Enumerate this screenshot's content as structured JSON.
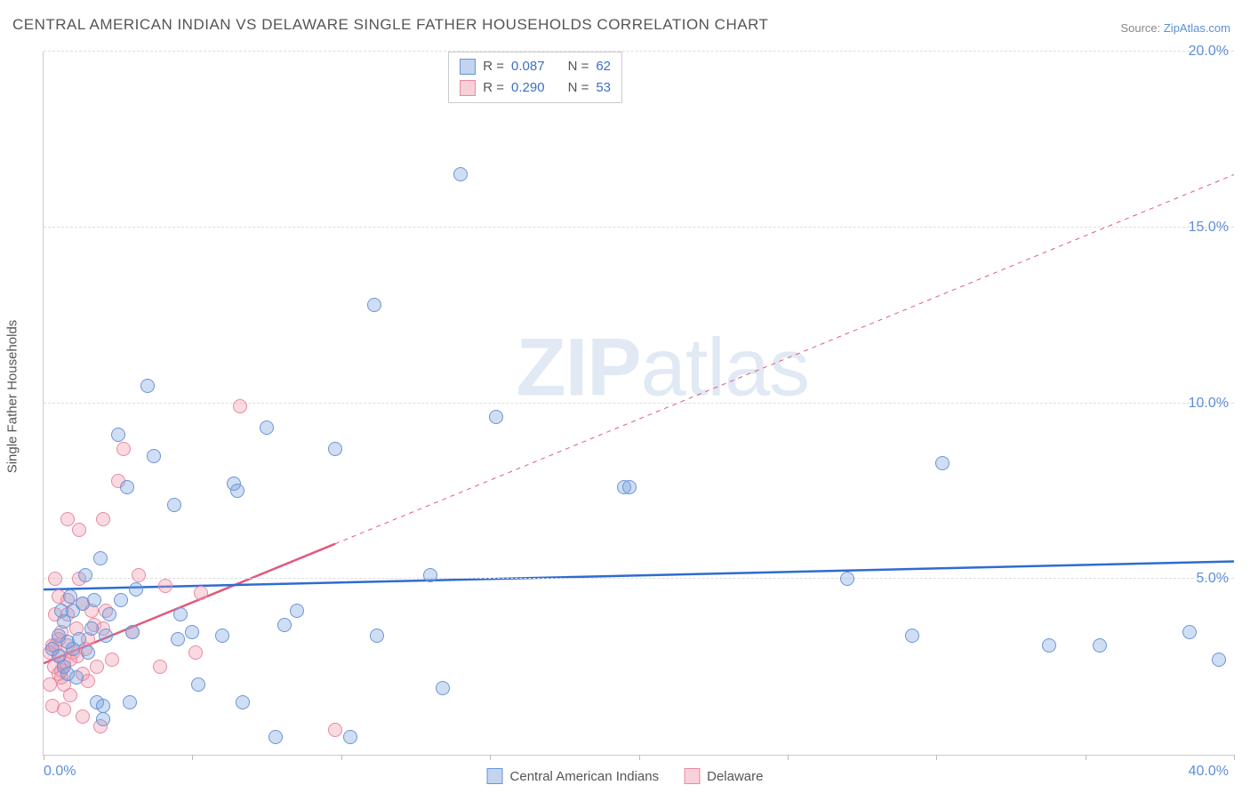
{
  "title": "CENTRAL AMERICAN INDIAN VS DELAWARE SINGLE FATHER HOUSEHOLDS CORRELATION CHART",
  "source_prefix": "Source: ",
  "source_name": "ZipAtlas.com",
  "ylabel": "Single Father Households",
  "watermark_a": "ZIP",
  "watermark_b": "atlas",
  "chart": {
    "type": "scatter",
    "xlim": [
      0,
      40
    ],
    "ylim": [
      0,
      20
    ],
    "xtick_positions": [
      0,
      5,
      10,
      15,
      20,
      25,
      30,
      35,
      40
    ],
    "xtick_labels": [
      "0.0%",
      "",
      "",
      "",
      "",
      "",
      "",
      "",
      "40.0%"
    ],
    "ytick_positions": [
      5,
      10,
      15,
      20
    ],
    "ytick_labels": [
      "5.0%",
      "10.0%",
      "15.0%",
      "20.0%"
    ],
    "background_color": "#ffffff",
    "grid_color": "#dddddd",
    "axis_color": "#cccccc",
    "label_color": "#5b8fd6",
    "title_color": "#555555",
    "title_fontsize": 17,
    "label_fontsize": 16,
    "marker_size": 16,
    "colors": {
      "blue_fill": "rgba(120,160,220,0.35)",
      "blue_stroke": "#6a95d8",
      "pink_fill": "rgba(240,150,170,0.35)",
      "pink_stroke": "#e68aa3",
      "blue_line": "#2e6cd1",
      "pink_line": "#e05a7d"
    },
    "legend_top": [
      {
        "swatch": "blue",
        "r_label": "R =",
        "r_value": "0.087",
        "n_label": "N =",
        "n_value": "62"
      },
      {
        "swatch": "pink",
        "r_label": "R =",
        "r_value": "0.290",
        "n_label": "N =",
        "n_value": "53"
      }
    ],
    "legend_bottom": [
      {
        "swatch": "blue",
        "label": "Central American Indians"
      },
      {
        "swatch": "pink",
        "label": "Delaware"
      }
    ],
    "trend_lines": {
      "blue_solid": {
        "x1": 0,
        "y1": 4.7,
        "x2": 40,
        "y2": 5.5,
        "width": 2.5,
        "dash": false
      },
      "pink_solid": {
        "x1": 0,
        "y1": 2.6,
        "x2": 9.8,
        "y2": 6.0,
        "width": 2.5,
        "dash": false
      },
      "pink_dashed": {
        "x1": 9.8,
        "y1": 6.0,
        "x2": 40,
        "y2": 16.5,
        "width": 1.0,
        "dash": true
      }
    },
    "series": {
      "blue": [
        [
          0.3,
          3.0
        ],
        [
          0.5,
          2.8
        ],
        [
          0.5,
          3.4
        ],
        [
          0.6,
          4.1
        ],
        [
          0.7,
          2.5
        ],
        [
          0.7,
          3.8
        ],
        [
          0.8,
          2.3
        ],
        [
          0.8,
          3.2
        ],
        [
          0.9,
          4.5
        ],
        [
          1.0,
          3.0
        ],
        [
          1.0,
          4.1
        ],
        [
          1.1,
          2.2
        ],
        [
          1.2,
          3.3
        ],
        [
          1.3,
          4.3
        ],
        [
          1.4,
          5.1
        ],
        [
          1.5,
          2.9
        ],
        [
          1.6,
          3.6
        ],
        [
          1.7,
          4.4
        ],
        [
          1.8,
          1.5
        ],
        [
          1.9,
          5.6
        ],
        [
          2.0,
          1.4
        ],
        [
          2.0,
          1.0
        ],
        [
          2.1,
          3.4
        ],
        [
          2.2,
          4.0
        ],
        [
          2.5,
          9.1
        ],
        [
          2.6,
          4.4
        ],
        [
          2.8,
          7.6
        ],
        [
          2.9,
          1.5
        ],
        [
          3.0,
          3.5
        ],
        [
          3.1,
          4.7
        ],
        [
          3.5,
          10.5
        ],
        [
          3.7,
          8.5
        ],
        [
          4.4,
          7.1
        ],
        [
          4.5,
          3.3
        ],
        [
          4.6,
          4.0
        ],
        [
          5.0,
          3.5
        ],
        [
          5.2,
          2.0
        ],
        [
          6.0,
          3.4
        ],
        [
          6.4,
          7.7
        ],
        [
          6.5,
          7.5
        ],
        [
          6.7,
          1.5
        ],
        [
          7.5,
          9.3
        ],
        [
          7.8,
          0.5
        ],
        [
          8.1,
          3.7
        ],
        [
          8.5,
          4.1
        ],
        [
          9.8,
          8.7
        ],
        [
          10.3,
          0.5
        ],
        [
          11.1,
          12.8
        ],
        [
          11.2,
          3.4
        ],
        [
          13.0,
          5.1
        ],
        [
          13.4,
          1.9
        ],
        [
          14.0,
          16.5
        ],
        [
          15.2,
          9.6
        ],
        [
          19.5,
          7.6
        ],
        [
          19.7,
          7.6
        ],
        [
          27.0,
          5.0
        ],
        [
          29.2,
          3.4
        ],
        [
          30.2,
          8.3
        ],
        [
          33.8,
          3.1
        ],
        [
          35.5,
          3.1
        ],
        [
          38.5,
          3.5
        ],
        [
          39.5,
          2.7
        ]
      ],
      "pink": [
        [
          0.2,
          2.0
        ],
        [
          0.2,
          2.9
        ],
        [
          0.3,
          1.4
        ],
        [
          0.3,
          3.1
        ],
        [
          0.35,
          2.5
        ],
        [
          0.4,
          3.1
        ],
        [
          0.4,
          4.0
        ],
        [
          0.4,
          5.0
        ],
        [
          0.5,
          2.3
        ],
        [
          0.5,
          3.3
        ],
        [
          0.5,
          4.5
        ],
        [
          0.55,
          2.8
        ],
        [
          0.6,
          2.2
        ],
        [
          0.6,
          2.4
        ],
        [
          0.6,
          3.5
        ],
        [
          0.7,
          1.3
        ],
        [
          0.7,
          2.0
        ],
        [
          0.7,
          2.6
        ],
        [
          0.8,
          3.1
        ],
        [
          0.8,
          4.0
        ],
        [
          0.8,
          4.4
        ],
        [
          0.8,
          6.7
        ],
        [
          0.9,
          1.7
        ],
        [
          0.9,
          2.7
        ],
        [
          1.0,
          2.9
        ],
        [
          1.1,
          3.6
        ],
        [
          1.15,
          2.8
        ],
        [
          1.2,
          5.0
        ],
        [
          1.2,
          6.4
        ],
        [
          1.3,
          1.1
        ],
        [
          1.3,
          2.3
        ],
        [
          1.3,
          4.3
        ],
        [
          1.4,
          3.0
        ],
        [
          1.5,
          2.1
        ],
        [
          1.5,
          3.3
        ],
        [
          1.6,
          4.1
        ],
        [
          1.7,
          3.7
        ],
        [
          1.8,
          2.5
        ],
        [
          1.9,
          0.8
        ],
        [
          2.0,
          3.6
        ],
        [
          2.0,
          6.7
        ],
        [
          2.1,
          4.1
        ],
        [
          2.3,
          2.7
        ],
        [
          2.5,
          7.8
        ],
        [
          2.7,
          8.7
        ],
        [
          3.0,
          3.5
        ],
        [
          3.2,
          5.1
        ],
        [
          3.9,
          2.5
        ],
        [
          4.1,
          4.8
        ],
        [
          5.1,
          2.9
        ],
        [
          5.3,
          4.6
        ],
        [
          6.6,
          9.9
        ],
        [
          9.8,
          0.7
        ]
      ]
    }
  }
}
